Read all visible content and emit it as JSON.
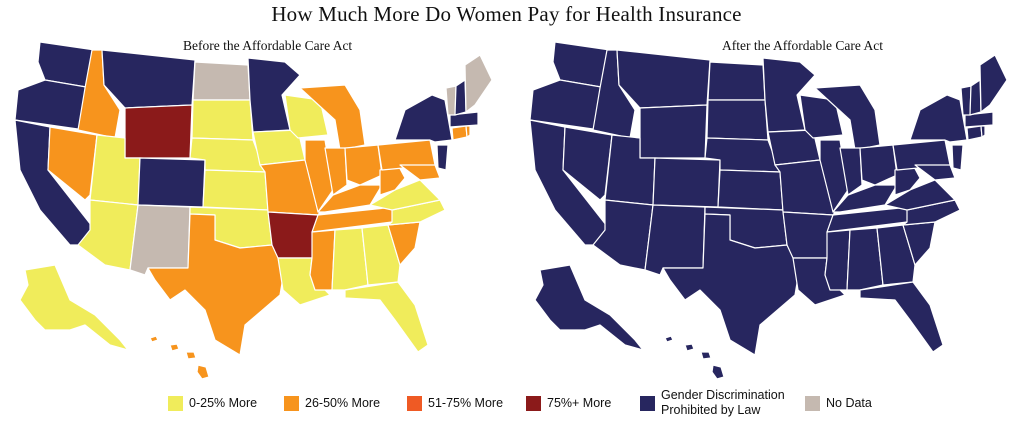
{
  "title": "How Much More Do Women Pay for Health Insurance",
  "maps": {
    "before": {
      "subtitle": "Before the Affordable Care Act"
    },
    "after": {
      "subtitle": "After the Affordable Care Act"
    }
  },
  "colors": {
    "low": "#f0ec5b",
    "mid": "#f7941d",
    "high": "#ef5a24",
    "top": "#8b1a1a",
    "prohibited": "#27265f",
    "nodata": "#c5b9b0",
    "border": "#ffffff"
  },
  "legend": [
    {
      "key": "low",
      "label": "0-25% More",
      "color": "#f0ec5b"
    },
    {
      "key": "mid",
      "label": "26-50% More",
      "color": "#f7941d"
    },
    {
      "key": "high",
      "label": "51-75% More",
      "color": "#ef5a24"
    },
    {
      "key": "top",
      "label": "75%+ More",
      "color": "#8b1a1a"
    },
    {
      "key": "prohibited",
      "label": "Gender Discrimination Prohibited by Law",
      "color": "#27265f"
    },
    {
      "key": "nodata",
      "label": "No Data",
      "color": "#c5b9b0"
    }
  ]
}
